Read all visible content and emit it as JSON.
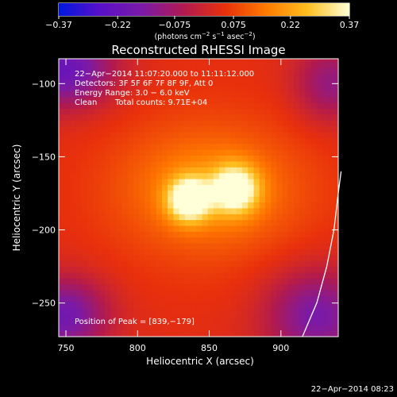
{
  "chart_data": {
    "type": "heatmap",
    "title": "Reconstructed RHESSI Image",
    "xlabel": "Heliocentric X (arcsec)",
    "ylabel": "Heliocentric Y (arcsec)",
    "xlim": [
      745,
      940
    ],
    "ylim": [
      -273,
      -83
    ],
    "x_ticks": [
      {
        "value": 750,
        "label": "750"
      },
      {
        "value": 800,
        "label": "800"
      },
      {
        "value": 850,
        "label": "850"
      },
      {
        "value": 900,
        "label": "900"
      }
    ],
    "y_ticks": [
      {
        "value": -100,
        "label": "−100"
      },
      {
        "value": -150,
        "label": "−150"
      },
      {
        "value": -200,
        "label": "−200"
      },
      {
        "value": -250,
        "label": "−250"
      }
    ],
    "colorbar": {
      "min": -0.37,
      "max": 0.37,
      "ticks": [
        {
          "value": -0.37,
          "label": "−0.37"
        },
        {
          "value": -0.22,
          "label": "−0.22"
        },
        {
          "value": -0.075,
          "label": "−0.075"
        },
        {
          "value": 0.075,
          "label": "0.075"
        },
        {
          "value": 0.22,
          "label": "0.22"
        },
        {
          "value": 0.37,
          "label": "0.37"
        }
      ],
      "unit_prefix": "(photons cm",
      "unit_exp1": "−2",
      "unit_mid1": " s",
      "unit_exp2": "−1",
      "unit_mid2": " asec",
      "unit_exp3": "−2",
      "unit_suffix": ")",
      "colors": [
        "#0018e0",
        "#5a10c8",
        "#7a1aa8",
        "#b01a50",
        "#e8300c",
        "#ff7a00",
        "#ffc020",
        "#ffffd8"
      ]
    },
    "annotations": {
      "time_range": "22−Apr−2014 11:07:20.000 to 11:11:12.000",
      "detectors": "Detectors: 3F 5F 6F 7F 8F 9F, Att 0",
      "energy": "Energy Range: 3.0 − 6.0 keV",
      "clean_label": "Clean",
      "total_counts": "Total counts: 9.71E+04",
      "peak": "Position of Peak = [839,−179]"
    },
    "image": {
      "background": 0.03,
      "sources": [
        {
          "x": 836,
          "y": -179,
          "sx": 10,
          "sy": 10,
          "peak": 0.37
        },
        {
          "x": 868,
          "y": -172,
          "sx": 11,
          "sy": 11,
          "peak": 0.33
        },
        {
          "x": 850,
          "y": -172,
          "sx": 40,
          "sy": 27,
          "peak": 0.12
        },
        {
          "x": 850,
          "y": -172,
          "sx": 75,
          "sy": 60,
          "peak": 0.045
        }
      ],
      "negative_regions": [
        {
          "x": 748,
          "y": -90,
          "sx": 25,
          "sy": 18,
          "peak": -0.25
        },
        {
          "x": 748,
          "y": -258,
          "sx": 22,
          "sy": 18,
          "peak": -0.22
        },
        {
          "x": 925,
          "y": -258,
          "sx": 25,
          "sy": 22,
          "peak": -0.2
        },
        {
          "x": 935,
          "y": -100,
          "sx": 18,
          "sy": 18,
          "peak": -0.15
        }
      ]
    },
    "limb": [
      [
        915,
        -273
      ],
      [
        925,
        -250
      ],
      [
        932,
        -225
      ],
      [
        937,
        -200
      ],
      [
        940,
        -175
      ],
      [
        942,
        -160
      ]
    ]
  },
  "timestamp": "22−Apr−2014 08:23"
}
